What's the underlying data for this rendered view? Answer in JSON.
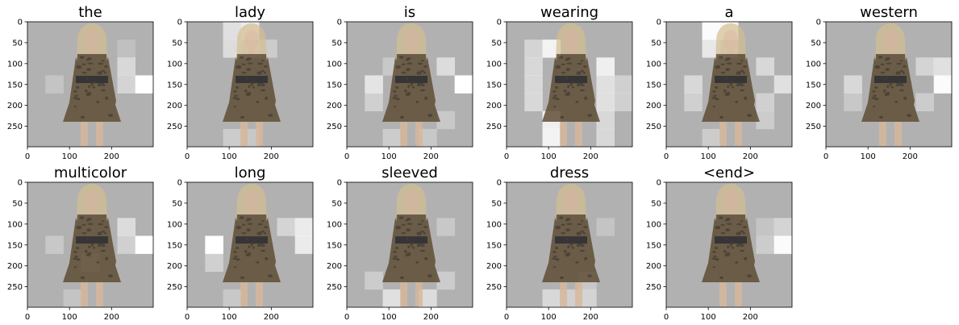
{
  "chart_data": {
    "type": "heatmap",
    "description_axes": {
      "x_ticks": [
        0,
        100,
        200
      ],
      "y_ticks": [
        0,
        50,
        100,
        150,
        200,
        250
      ],
      "xlim": [
        0,
        299
      ],
      "ylim": [
        299,
        0
      ]
    },
    "grid": "7x7 attention overlay on photo of woman in leopard-print long-sleeved dress",
    "panels": [
      {
        "title": "the",
        "hot": [
          [
            3,
            6,
            1.0
          ],
          [
            2,
            5,
            0.5
          ],
          [
            3,
            5,
            0.45
          ],
          [
            3,
            1,
            0.25
          ],
          [
            1,
            5,
            0.2
          ]
        ]
      },
      {
        "title": "lady",
        "hot": [
          [
            0,
            3,
            0.75
          ],
          [
            0,
            2,
            0.6
          ],
          [
            1,
            2,
            0.55
          ],
          [
            1,
            3,
            0.5
          ],
          [
            1,
            4,
            0.35
          ],
          [
            6,
            2,
            0.35
          ],
          [
            6,
            3,
            0.3
          ]
        ]
      },
      {
        "title": "is",
        "hot": [
          [
            3,
            6,
            1.0
          ],
          [
            3,
            1,
            0.65
          ],
          [
            2,
            5,
            0.55
          ],
          [
            4,
            1,
            0.4
          ],
          [
            5,
            5,
            0.3
          ],
          [
            6,
            2,
            0.35
          ],
          [
            6,
            4,
            0.3
          ],
          [
            2,
            2,
            0.3
          ]
        ]
      },
      {
        "title": "wearing",
        "hot": [
          [
            1,
            2,
            0.85
          ],
          [
            2,
            5,
            0.8
          ],
          [
            5,
            2,
            0.8
          ],
          [
            6,
            2,
            0.85
          ],
          [
            3,
            5,
            0.6
          ],
          [
            4,
            5,
            0.6
          ],
          [
            1,
            1,
            0.45
          ],
          [
            2,
            1,
            0.5
          ],
          [
            3,
            1,
            0.5
          ],
          [
            4,
            1,
            0.5
          ],
          [
            5,
            5,
            0.5
          ],
          [
            6,
            5,
            0.5
          ],
          [
            3,
            6,
            0.4
          ],
          [
            4,
            6,
            0.4
          ]
        ]
      },
      {
        "title": "a",
        "hot": [
          [
            0,
            2,
            0.95
          ],
          [
            0,
            3,
            0.9
          ],
          [
            1,
            2,
            0.7
          ],
          [
            3,
            6,
            0.6
          ],
          [
            3,
            1,
            0.5
          ],
          [
            2,
            5,
            0.5
          ],
          [
            4,
            1,
            0.4
          ],
          [
            1,
            3,
            0.45
          ],
          [
            4,
            5,
            0.4
          ],
          [
            5,
            5,
            0.35
          ],
          [
            6,
            2,
            0.35
          ]
        ]
      },
      {
        "title": "western",
        "hot": [
          [
            3,
            6,
            0.95
          ],
          [
            2,
            6,
            0.6
          ],
          [
            3,
            1,
            0.5
          ],
          [
            2,
            5,
            0.45
          ],
          [
            4,
            5,
            0.35
          ],
          [
            4,
            1,
            0.3
          ]
        ]
      },
      {
        "title": "multicolor",
        "hot": [
          [
            3,
            6,
            1.0
          ],
          [
            2,
            5,
            0.55
          ],
          [
            3,
            5,
            0.4
          ],
          [
            3,
            1,
            0.3
          ],
          [
            4,
            3,
            0.3
          ],
          [
            6,
            2,
            0.25
          ]
        ]
      },
      {
        "title": "long",
        "hot": [
          [
            3,
            1,
            1.0
          ],
          [
            2,
            6,
            0.75
          ],
          [
            3,
            6,
            0.75
          ],
          [
            4,
            1,
            0.4
          ],
          [
            2,
            5,
            0.45
          ],
          [
            6,
            2,
            0.3
          ]
        ]
      },
      {
        "title": "sleeved",
        "hot": [
          [
            6,
            2,
            0.6
          ],
          [
            6,
            4,
            0.55
          ],
          [
            5,
            1,
            0.35
          ],
          [
            5,
            5,
            0.35
          ],
          [
            2,
            5,
            0.3
          ]
        ]
      },
      {
        "title": "dress",
        "hot": [
          [
            6,
            2,
            0.5
          ],
          [
            6,
            3,
            0.4
          ],
          [
            6,
            4,
            0.45
          ],
          [
            5,
            4,
            0.3
          ],
          [
            2,
            5,
            0.25
          ]
        ]
      },
      {
        "title": "<end>",
        "hot": [
          [
            3,
            6,
            0.95
          ],
          [
            2,
            6,
            0.45
          ],
          [
            3,
            5,
            0.35
          ],
          [
            2,
            5,
            0.25
          ]
        ]
      }
    ]
  },
  "colors": {
    "base_gray": "#b1b1b1",
    "hot": "#ffffff",
    "skin": "#d8b89a",
    "hair": "#d4bd8f",
    "dress": "#5c4a30",
    "print": "#2c2218",
    "belt": "#1a1a1e"
  }
}
